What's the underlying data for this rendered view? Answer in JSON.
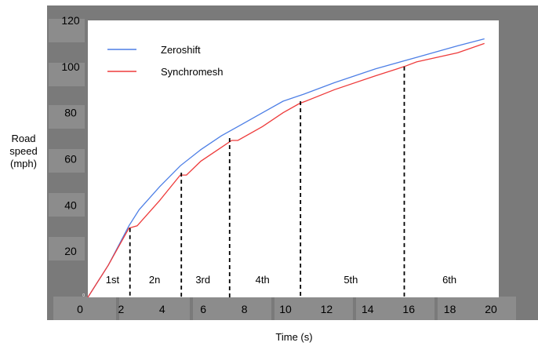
{
  "chart_data": {
    "type": "line",
    "xlabel": "Time (s)",
    "ylabel": "Road\nspeed\n(mph)",
    "xlim": [
      0,
      20
    ],
    "ylim": [
      0,
      120
    ],
    "xticks": [
      0,
      2,
      4,
      6,
      8,
      10,
      12,
      14,
      16,
      18,
      20
    ],
    "yticks": [
      0,
      20,
      40,
      60,
      80,
      100,
      120
    ],
    "legend_position": "top-left",
    "series": [
      {
        "name": "Zeroshift",
        "color": "#4d7fe6",
        "points": [
          [
            0,
            0
          ],
          [
            1,
            14
          ],
          [
            2,
            31
          ],
          [
            2.5,
            38
          ],
          [
            3.5,
            48
          ],
          [
            4.5,
            57
          ],
          [
            5.5,
            64
          ],
          [
            6.5,
            70
          ],
          [
            7.5,
            75
          ],
          [
            8.5,
            80
          ],
          [
            9.5,
            85
          ],
          [
            10.5,
            88
          ],
          [
            12,
            93
          ],
          [
            14,
            99
          ],
          [
            16,
            104
          ],
          [
            18,
            109
          ],
          [
            19.3,
            112
          ]
        ]
      },
      {
        "name": "Synchromesh",
        "color": "#ee3b3b",
        "points": [
          [
            0,
            0
          ],
          [
            1,
            14
          ],
          [
            2,
            30
          ],
          [
            2.4,
            31
          ],
          [
            3.5,
            42
          ],
          [
            4.5,
            53
          ],
          [
            4.8,
            53
          ],
          [
            5.5,
            59
          ],
          [
            6.5,
            65
          ],
          [
            7,
            68
          ],
          [
            7.3,
            68
          ],
          [
            8.5,
            74
          ],
          [
            9.5,
            80
          ],
          [
            10.3,
            84
          ],
          [
            10.6,
            85
          ],
          [
            12,
            90
          ],
          [
            14,
            96
          ],
          [
            15.4,
            100
          ],
          [
            16,
            102
          ],
          [
            18,
            106
          ],
          [
            19.3,
            110
          ]
        ]
      }
    ],
    "shift_points": [
      {
        "x": 2.05,
        "y": 30
      },
      {
        "x": 4.55,
        "y": 54
      },
      {
        "x": 6.9,
        "y": 69
      },
      {
        "x": 10.35,
        "y": 85
      },
      {
        "x": 15.4,
        "y": 100
      }
    ],
    "gear_labels": [
      {
        "label": "1st",
        "x": 1.2
      },
      {
        "label": "2n",
        "x": 3.25
      },
      {
        "label": "3rd",
        "x": 5.6
      },
      {
        "label": "4th",
        "x": 8.5
      },
      {
        "label": "5th",
        "x": 12.8
      },
      {
        "label": "6th",
        "x": 17.6
      }
    ]
  }
}
